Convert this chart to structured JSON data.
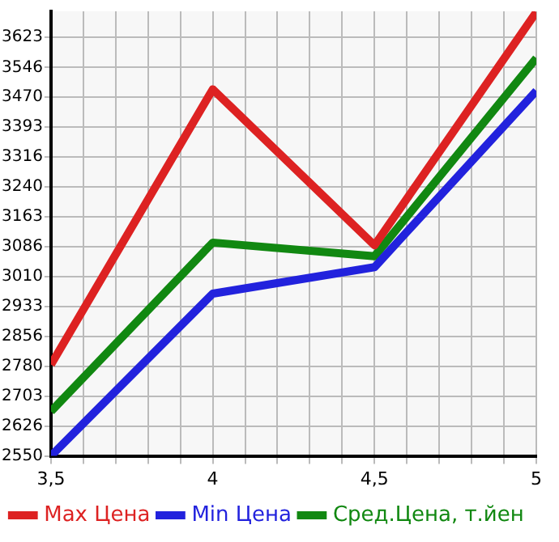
{
  "chart_data": {
    "type": "line",
    "x": [
      3.5,
      4,
      4.5,
      5
    ],
    "series": [
      {
        "name": "Max Цена",
        "color": "#dd2222",
        "values": [
          2784,
          3490,
          3090,
          3688
        ]
      },
      {
        "name": "Min Цена",
        "color": "#2222dd",
        "values": [
          2550,
          2966,
          3034,
          3486
        ]
      },
      {
        "name": "Сред.Цена, т.йен",
        "color": "#118811",
        "values": [
          2664,
          3097,
          3062,
          3570
        ]
      }
    ],
    "xlim": [
      3.5,
      5
    ],
    "xticks": [
      {
        "value": 3.5,
        "label": "3,5"
      },
      {
        "value": 3.6,
        "label": null
      },
      {
        "value": 3.7,
        "label": null
      },
      {
        "value": 3.8,
        "label": null
      },
      {
        "value": 3.9,
        "label": null
      },
      4,
      {
        "value": 4.1,
        "label": null
      },
      {
        "value": 4.2,
        "label": null
      },
      {
        "value": 4.3,
        "label": null
      },
      {
        "value": 4.4,
        "label": null
      },
      {
        "value": 4.5,
        "label": "4,5"
      },
      {
        "value": 4.6,
        "label": null
      },
      {
        "value": 4.7,
        "label": null
      },
      {
        "value": 4.8,
        "label": null
      },
      {
        "value": 4.9,
        "label": null
      },
      5
    ],
    "ylim": [
      2550,
      3690
    ],
    "yticks": [
      2550,
      2626,
      2703,
      2780,
      2856,
      2933,
      3010,
      3086,
      3163,
      3240,
      3316,
      3393,
      3470,
      3546,
      3623
    ],
    "grid": true,
    "legend": "bottom",
    "marker": "none",
    "line_style": "solid"
  }
}
